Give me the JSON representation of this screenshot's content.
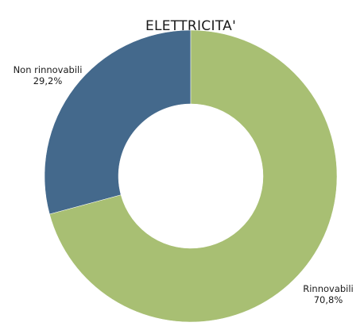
{
  "chart_data": {
    "type": "pie",
    "variant": "donut",
    "title": "ELETTRICITA'",
    "slices": [
      {
        "name": "Non rinnovabili",
        "value": 29.2,
        "value_label": "29,2%",
        "color": "#44698c"
      },
      {
        "name": "Rinnovabili",
        "value": 70.8,
        "value_label": "70,8%",
        "color": "#a8bf73"
      }
    ],
    "start_angle_deg": 0,
    "direction": "counterclockwise"
  }
}
